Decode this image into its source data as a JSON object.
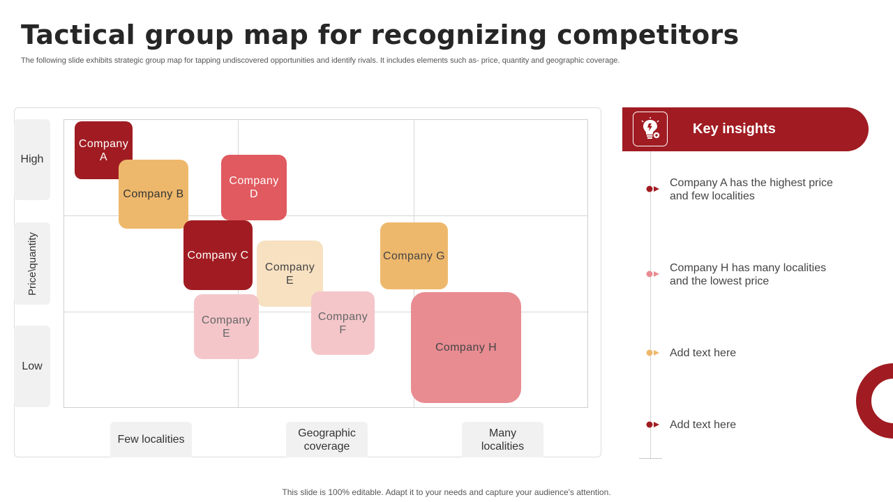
{
  "slide": {
    "title": "Tactical group map for recognizing competitors",
    "subtitle": "The following slide exhibits strategic group map for tapping undiscovered opportunities and identify rivals. It includes elements such as- price, quantity and geographic coverage.",
    "footer": "This slide is 100% editable. Adapt it to your needs and capture your audience's attention."
  },
  "map": {
    "y_labels": {
      "high": "High",
      "axis": "Price\\quantity",
      "low": "Low"
    },
    "x_labels": {
      "left": "Few localities",
      "axis": "Geographic coverage",
      "right": "Many localities"
    },
    "companies": [
      {
        "label": "Company A",
        "color": "#a01c22",
        "text_color": "#ffffff"
      },
      {
        "label": "Company B",
        "color": "#eeb86c",
        "text_color": "#333333"
      },
      {
        "label": "Company D",
        "color": "#e05a5f",
        "text_color": "#ffffff"
      },
      {
        "label": "Company C",
        "color": "#a01c22",
        "text_color": "#ffffff"
      },
      {
        "label": "Company E",
        "color": "#f7e1c1",
        "text_color": "#444444"
      },
      {
        "label": "Company G",
        "color": "#eeb86c",
        "text_color": "#444444"
      },
      {
        "label": "Company E",
        "color": "#f4c6ca",
        "text_color": "#666666"
      },
      {
        "label": "Company F",
        "color": "#f4c6ca",
        "text_color": "#666666"
      },
      {
        "label": "Company H",
        "color": "#e88c92",
        "text_color": "#444444"
      }
    ]
  },
  "insights": {
    "title": "Key insights",
    "icon": "lightbulb-gear-icon",
    "items": [
      {
        "text": "Company A has  the highest price and few localities",
        "marker_color": "#a01c22"
      },
      {
        "text": "Company H has many localities and the lowest price",
        "marker_color": "#e88c92"
      },
      {
        "text": "Add text here",
        "marker_color": "#eeb86c"
      },
      {
        "text": "Add text here",
        "marker_color": "#a01c22"
      }
    ]
  },
  "colors": {
    "accent": "#a01c22",
    "panel_gray": "#f1f1f1"
  }
}
